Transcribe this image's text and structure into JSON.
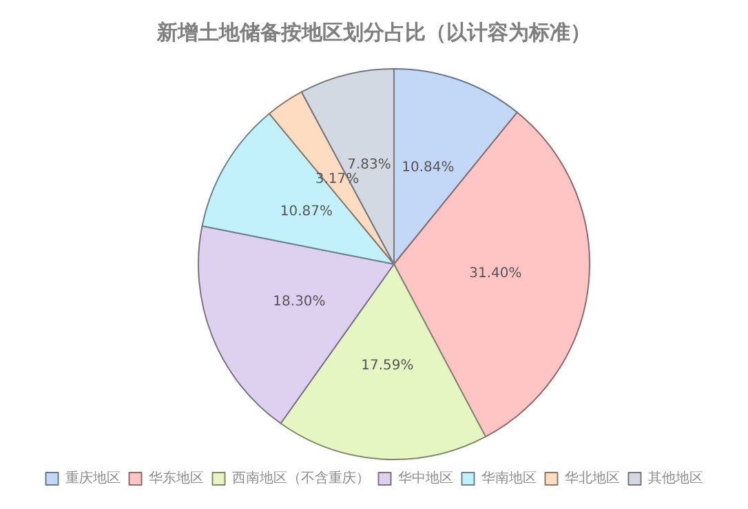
{
  "chart_data": {
    "type": "pie",
    "title": "新增土地储备按地区划分占比（以计容为标准）",
    "categories": [
      "重庆地区",
      "华东地区",
      "西南地区（不含重庆）",
      "华中地区",
      "华南地区",
      "华北地区",
      "其他地区"
    ],
    "values": [
      10.84,
      31.4,
      17.59,
      18.3,
      10.87,
      3.17,
      7.83
    ],
    "value_labels": [
      "10.84%",
      "31.40%",
      "17.59%",
      "18.30%",
      "10.87%",
      "3.17%",
      "7.83%"
    ],
    "colors": [
      "#c3d7f7",
      "#ffc4c4",
      "#e6f6c2",
      "#ddd1ef",
      "#c2f0fb",
      "#fedcc2",
      "#d3d9e3"
    ],
    "legend": "bottom"
  }
}
